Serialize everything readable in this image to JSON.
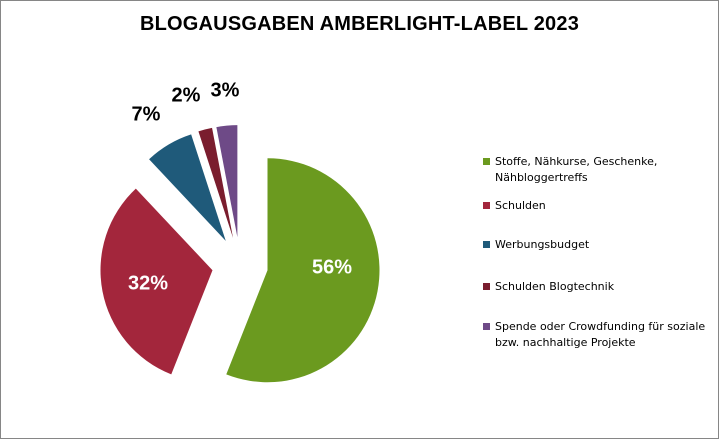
{
  "chart_data": {
    "type": "pie",
    "title": "BLOGAUSGABEN AMBERLIGHT-LABEL 2023",
    "categories": [
      "Stoffe, Nähkurse, Geschenke, Nähbloggertreffs",
      "Schulden",
      "Werbungsbudget",
      "Schulden Blogtechnik",
      "Spende oder Crowdfunding für soziale bzw. nachhaltige Projekte"
    ],
    "values": [
      56,
      32,
      7,
      2,
      3
    ],
    "data_labels": [
      "56%",
      "32%",
      "7%",
      "2%",
      "3%"
    ],
    "colors": [
      "#6b9a1f",
      "#a3263c",
      "#1f5a7a",
      "#7a1d2e",
      "#6e4a87"
    ],
    "label_colors": [
      "#ffffff",
      "#ffffff",
      "#000000",
      "#000000",
      "#000000"
    ],
    "exploded": true,
    "legend_position": "right"
  }
}
